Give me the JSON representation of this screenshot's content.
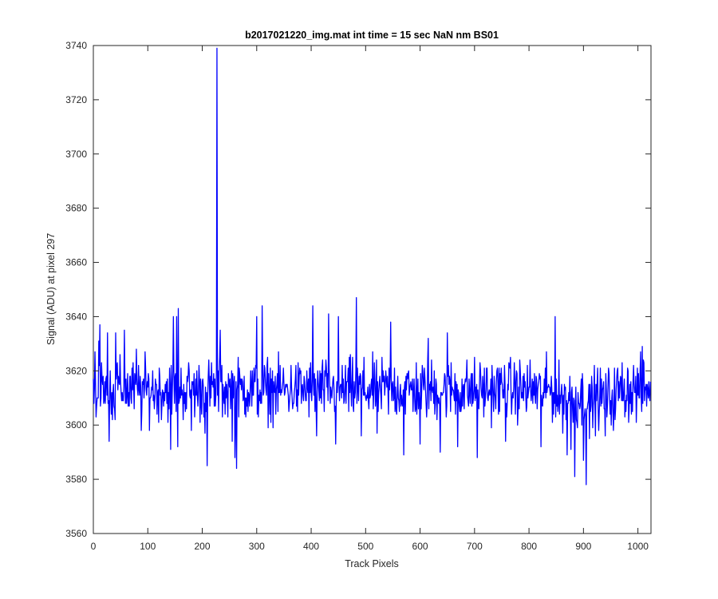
{
  "chart_data": {
    "type": "line",
    "title": "b2017021220_img.mat int time = 15 sec  NaN nm BS01",
    "xlabel": "Track Pixels",
    "ylabel": "Signal (ADU) at pixel 297",
    "xlim": [
      0,
      1024
    ],
    "ylim": [
      3560,
      3740
    ],
    "xticks": [
      0,
      100,
      200,
      300,
      400,
      500,
      600,
      700,
      800,
      900,
      1000
    ],
    "yticks": [
      3560,
      3580,
      3600,
      3620,
      3640,
      3660,
      3680,
      3700,
      3720,
      3740
    ],
    "grid": false,
    "legend": "none",
    "series": [
      {
        "color": "#0000ff",
        "n_points": 1024,
        "baseline": 3613,
        "noise_amplitude": 9,
        "peaks": [
          {
            "x": 3,
            "y": 3627
          },
          {
            "x": 6,
            "y": 3607
          },
          {
            "x": 10,
            "y": 3631
          },
          {
            "x": 12,
            "y": 3637
          },
          {
            "x": 26,
            "y": 3634
          },
          {
            "x": 29,
            "y": 3594
          },
          {
            "x": 41,
            "y": 3634
          },
          {
            "x": 57,
            "y": 3635
          },
          {
            "x": 79,
            "y": 3628
          },
          {
            "x": 88,
            "y": 3598
          },
          {
            "x": 142,
            "y": 3591
          },
          {
            "x": 147,
            "y": 3640
          },
          {
            "x": 153,
            "y": 3640
          },
          {
            "x": 155,
            "y": 3592
          },
          {
            "x": 156,
            "y": 3643
          },
          {
            "x": 180,
            "y": 3598
          },
          {
            "x": 205,
            "y": 3597
          },
          {
            "x": 209,
            "y": 3585
          },
          {
            "x": 227,
            "y": 3739
          },
          {
            "x": 233,
            "y": 3635
          },
          {
            "x": 255,
            "y": 3594
          },
          {
            "x": 260,
            "y": 3588
          },
          {
            "x": 263,
            "y": 3584
          },
          {
            "x": 300,
            "y": 3640
          },
          {
            "x": 310,
            "y": 3644
          },
          {
            "x": 403,
            "y": 3644
          },
          {
            "x": 410,
            "y": 3596
          },
          {
            "x": 432,
            "y": 3641
          },
          {
            "x": 445,
            "y": 3593
          },
          {
            "x": 450,
            "y": 3640
          },
          {
            "x": 483,
            "y": 3647
          },
          {
            "x": 492,
            "y": 3596
          },
          {
            "x": 521,
            "y": 3597
          },
          {
            "x": 546,
            "y": 3638
          },
          {
            "x": 570,
            "y": 3589
          },
          {
            "x": 600,
            "y": 3593
          },
          {
            "x": 615,
            "y": 3632
          },
          {
            "x": 637,
            "y": 3590
          },
          {
            "x": 650,
            "y": 3634
          },
          {
            "x": 669,
            "y": 3592
          },
          {
            "x": 705,
            "y": 3588
          },
          {
            "x": 757,
            "y": 3594
          },
          {
            "x": 822,
            "y": 3592
          },
          {
            "x": 848,
            "y": 3640
          },
          {
            "x": 870,
            "y": 3589
          },
          {
            "x": 877,
            "y": 3591
          },
          {
            "x": 884,
            "y": 3581
          },
          {
            "x": 900,
            "y": 3587
          },
          {
            "x": 905,
            "y": 3578
          },
          {
            "x": 911,
            "y": 3595
          },
          {
            "x": 940,
            "y": 3596
          },
          {
            "x": 1008,
            "y": 3629
          }
        ]
      }
    ]
  }
}
